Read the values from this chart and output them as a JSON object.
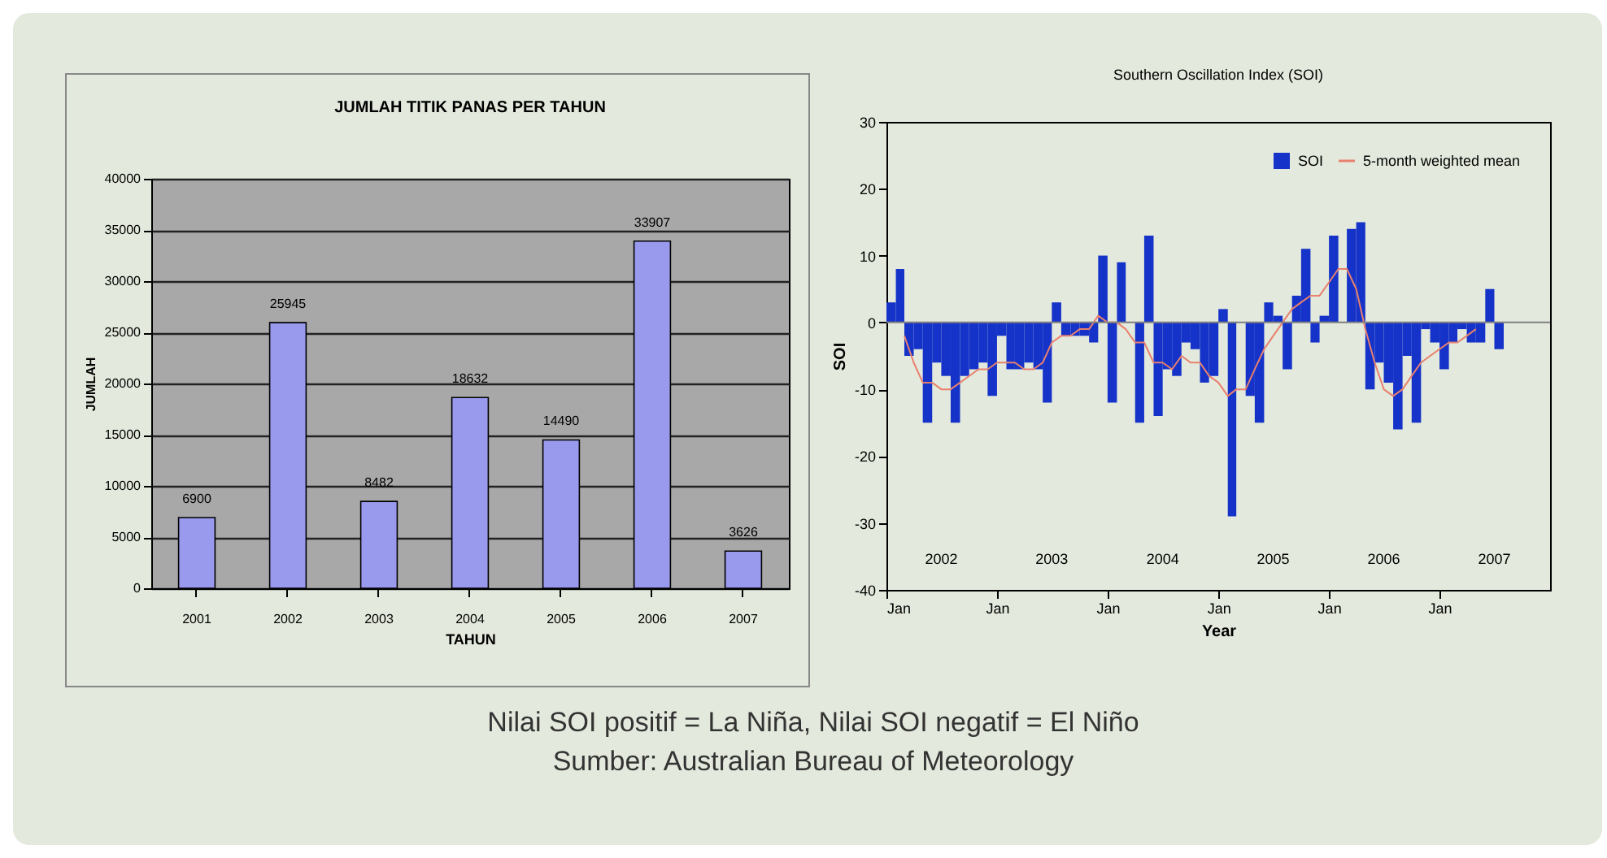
{
  "chart_data": [
    {
      "type": "bar",
      "title": "JUMLAH TITIK PANAS PER TAHUN",
      "xlabel": "TAHUN",
      "ylabel": "JUMLAH",
      "categories": [
        "2001",
        "2002",
        "2003",
        "2004",
        "2005",
        "2006",
        "2007"
      ],
      "values": [
        6900,
        25945,
        8482,
        18632,
        14490,
        33907,
        3626
      ],
      "color": "#9999ee",
      "ylim": [
        0,
        40000
      ],
      "yticks": [
        0,
        5000,
        10000,
        15000,
        20000,
        25000,
        30000,
        35000,
        40000
      ],
      "grid": "y",
      "data_labels": true
    },
    {
      "type": "bar",
      "title": "Southern Oscillation Index (SOI)",
      "xlabel": "Year",
      "ylabel": "SOI",
      "x": [
        "2002-01",
        "2002-02",
        "2002-03",
        "2002-04",
        "2002-05",
        "2002-06",
        "2002-07",
        "2002-08",
        "2002-09",
        "2002-10",
        "2002-11",
        "2002-12",
        "2003-01",
        "2003-02",
        "2003-03",
        "2003-04",
        "2003-05",
        "2003-06",
        "2003-07",
        "2003-08",
        "2003-09",
        "2003-10",
        "2003-11",
        "2003-12",
        "2004-01",
        "2004-02",
        "2004-03",
        "2004-04",
        "2004-05",
        "2004-06",
        "2004-07",
        "2004-08",
        "2004-09",
        "2004-10",
        "2004-11",
        "2004-12",
        "2005-01",
        "2005-02",
        "2005-03",
        "2005-04",
        "2005-05",
        "2005-06",
        "2005-07",
        "2005-08",
        "2005-09",
        "2005-10",
        "2005-11",
        "2005-12",
        "2006-01",
        "2006-02",
        "2006-03",
        "2006-04",
        "2006-05",
        "2006-06",
        "2006-07",
        "2006-08",
        "2006-09",
        "2006-10",
        "2006-11",
        "2006-12",
        "2007-01",
        "2007-02",
        "2007-03",
        "2007-04",
        "2007-05",
        "2007-06",
        "2007-07"
      ],
      "series": [
        {
          "name": "SOI",
          "color": "#1533c8",
          "values": [
            3,
            8,
            -5,
            -4,
            -15,
            -6,
            -8,
            -15,
            -8,
            -7,
            -6,
            -11,
            -2,
            -7,
            -7,
            -6,
            -7,
            -12,
            3,
            -2,
            -2,
            -2,
            -3,
            10,
            -12,
            9,
            0,
            -15,
            13,
            -14,
            -7,
            -8,
            -3,
            -4,
            -9,
            -8,
            2,
            -29,
            0,
            -11,
            -15,
            3,
            1,
            -7,
            4,
            11,
            -3,
            1,
            13,
            0,
            14,
            15,
            -10,
            -6,
            -9,
            -16,
            -5,
            -15,
            -1,
            -3,
            -7,
            -3,
            -1,
            -3,
            -3,
            5,
            -4
          ]
        },
        {
          "name": "5-month weighted mean",
          "type": "line",
          "color": "#e8806e",
          "values": [
            null,
            null,
            -2,
            -6,
            -9,
            -9,
            -10,
            -10,
            -9,
            -8,
            -7,
            -7,
            -6,
            -6,
            -6,
            -7,
            -7,
            -6,
            -3,
            -2,
            -2,
            -1,
            -1,
            1,
            0,
            0,
            -1,
            -3,
            -3,
            -6,
            -6,
            -7,
            -5,
            -6,
            -6,
            -8,
            -9,
            -11,
            -10,
            -10,
            -7,
            -4,
            -2,
            0,
            2,
            3,
            4,
            4,
            6,
            8,
            8,
            5,
            -1,
            -6,
            -10,
            -11,
            -10,
            -8,
            -6,
            -5,
            -4,
            -3,
            -3,
            -2,
            -1,
            null,
            null
          ]
        }
      ],
      "xlim": [
        "2002-01",
        "2008-01"
      ],
      "xticks": [
        {
          "value": "2002-01",
          "label": "Jan"
        },
        {
          "value": "2003-01",
          "label": "Jan"
        },
        {
          "value": "2004-01",
          "label": "Jan"
        },
        {
          "value": "2005-01",
          "label": "Jan"
        },
        {
          "value": "2006-01",
          "label": "Jan"
        },
        {
          "value": "2007-01",
          "label": "Jan"
        }
      ],
      "ylim": [
        -40,
        30
      ],
      "yticks": [
        -40,
        -30,
        -20,
        -10,
        0,
        10,
        20,
        30
      ],
      "legend": "top right",
      "ref_lines": [
        {
          "axis": "y",
          "value": 0,
          "color": "#808080"
        }
      ],
      "x2lim": [
        "2002-01",
        "2008-01"
      ],
      "x2ticks": [
        {
          "value": "2002-07",
          "label": "2002"
        },
        {
          "value": "2003-07",
          "label": "2003"
        },
        {
          "value": "2004-07",
          "label": "2004"
        },
        {
          "value": "2005-07",
          "label": "2005"
        },
        {
          "value": "2006-07",
          "label": "2006"
        },
        {
          "value": "2007-07",
          "label": "2007"
        }
      ],
      "annotations": [
        "Nilai SOI positif = La Niña, Nilai SOI negatif = El Niño",
        "Sumber: Australian Bureau of Meteorology"
      ]
    }
  ]
}
